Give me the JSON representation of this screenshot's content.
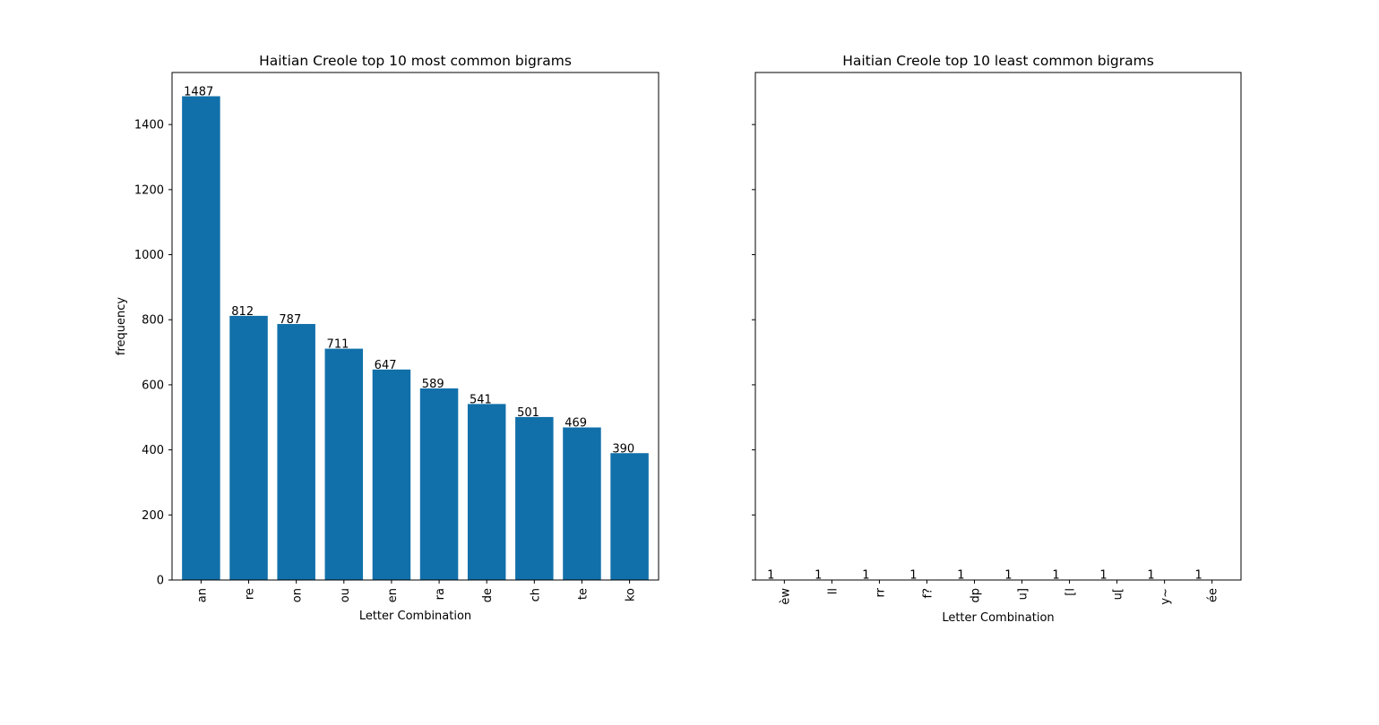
{
  "chart_data": [
    {
      "type": "bar",
      "title": "Haitian Creole top 10 most common bigrams",
      "xlabel": "Letter Combination",
      "ylabel": "frequency",
      "categories": [
        "an",
        "re",
        "on",
        "ou",
        "en",
        "ra",
        "de",
        "ch",
        "te",
        "ko"
      ],
      "values": [
        1487,
        812,
        787,
        711,
        647,
        589,
        541,
        501,
        469,
        390
      ],
      "ylim": [
        0,
        1560
      ],
      "yticks": [
        0,
        200,
        400,
        600,
        800,
        1000,
        1200,
        1400
      ],
      "show_ytick_labels": true,
      "bar_color": "#1170aa",
      "grid": false
    },
    {
      "type": "bar",
      "title": "Haitian Creole top 10 least common bigrams",
      "xlabel": "Letter Combination",
      "ylabel": "",
      "categories": [
        "èw",
        "ll",
        "rr",
        "f?",
        "dp",
        "u]",
        "[l",
        "u[",
        "y~",
        "ée"
      ],
      "values": [
        1,
        1,
        1,
        1,
        1,
        1,
        1,
        1,
        1,
        1
      ],
      "ylim": [
        0,
        1560
      ],
      "yticks": [
        0,
        200,
        400,
        600,
        800,
        1000,
        1200,
        1400
      ],
      "show_ytick_labels": false,
      "bar_color": "#1170aa",
      "grid": false
    }
  ]
}
